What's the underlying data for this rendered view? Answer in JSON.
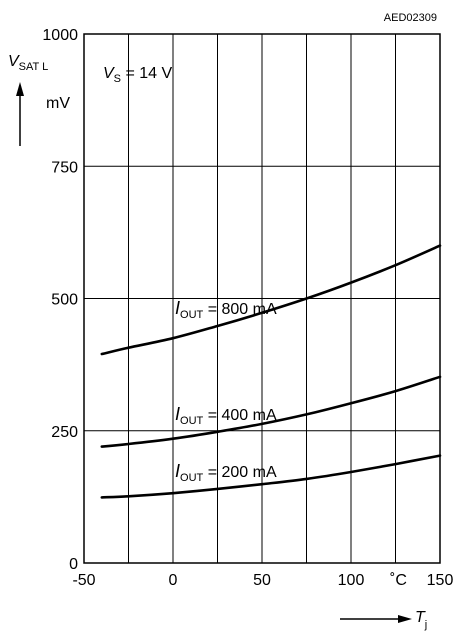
{
  "chart_data": {
    "type": "line",
    "figure_code": "AED02309",
    "condition": {
      "var": "V",
      "sub": "S",
      "rest": " = 14 V"
    },
    "ylabel": {
      "var": "V",
      "sub": "SAT L",
      "unit": "mV"
    },
    "xlabel": {
      "var": "T",
      "sub": "j",
      "unit": "˚C"
    },
    "xlim": [
      -50,
      150
    ],
    "ylim": [
      0,
      1000
    ],
    "xticks": [
      "-50",
      "0",
      "50",
      "100",
      "150"
    ],
    "yticks": [
      "0",
      "250",
      "500",
      "750",
      "1000"
    ],
    "vgrid": [
      -25,
      0,
      25,
      50,
      75,
      100,
      125,
      150
    ],
    "hgrid": [
      250,
      500,
      750,
      1000
    ],
    "series": [
      {
        "name": "I_OUT = 800 mA",
        "label": {
          "var": "I",
          "sub": "OUT",
          "rest": " = 800 mA"
        },
        "x": [
          -40,
          -25,
          0,
          25,
          50,
          75,
          100,
          125,
          150
        ],
        "y": [
          395,
          407,
          425,
          448,
          473,
          500,
          530,
          563,
          600
        ]
      },
      {
        "name": "I_OUT = 400 mA",
        "label": {
          "var": "I",
          "sub": "OUT",
          "rest": " = 400 mA"
        },
        "x": [
          -40,
          -25,
          0,
          25,
          50,
          75,
          100,
          125,
          150
        ],
        "y": [
          220,
          225,
          235,
          248,
          263,
          281,
          302,
          325,
          352
        ]
      },
      {
        "name": "I_OUT = 200 mA",
        "label": {
          "var": "I",
          "sub": "OUT",
          "rest": " = 200 mA"
        },
        "x": [
          -40,
          -25,
          0,
          25,
          50,
          75,
          100,
          125,
          150
        ],
        "y": [
          124,
          126,
          132,
          140,
          149,
          159,
          172,
          187,
          203
        ]
      }
    ],
    "grid": true
  }
}
